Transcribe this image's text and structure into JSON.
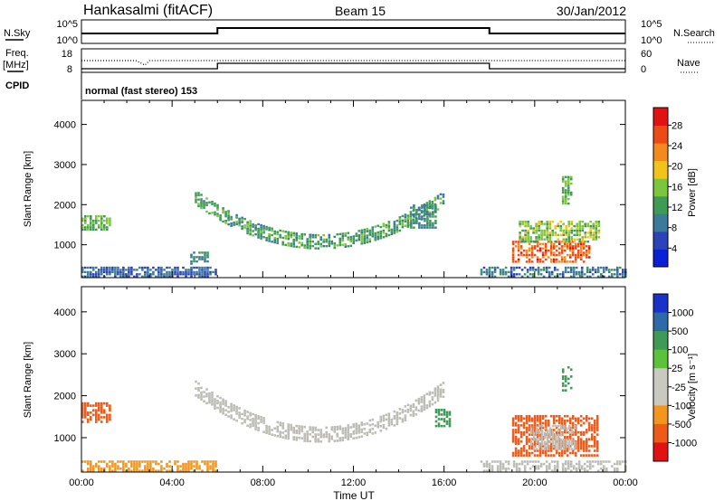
{
  "header": {
    "station": "Hankasalmi (fitACF)",
    "beam": "Beam 15",
    "date": "30/Jan/2012"
  },
  "params": {
    "nsky_label": "N.Sky",
    "nsearch_label": "N.Search",
    "freq_label": "Freq.",
    "freq_unit": "[MHz]",
    "nave_label": "Nave",
    "cpid_label": "CPID",
    "cpid_text": "normal (fast stereo) 153",
    "nsky_ticks": [
      "10^5",
      "10^0"
    ],
    "nsearch_ticks": [
      "10^5",
      "10^0"
    ],
    "freq_ticks": [
      "18",
      "8"
    ],
    "nave_ticks": [
      "60",
      "0"
    ]
  },
  "colors": {
    "power_scale": [
      "#0a1fd6",
      "#2a44b8",
      "#3b7a98",
      "#3f9a56",
      "#7cc63c",
      "#f2c41a",
      "#f28a1e",
      "#ee4a16",
      "#e01212"
    ],
    "velocity_scale": [
      "#e01212",
      "#ee5a18",
      "#f2961e",
      "#c9c9c2",
      "#c9c9c2",
      "#5cc23c",
      "#3f9a56",
      "#2f6aa8",
      "#1b32c8"
    ],
    "ground_scatter": "#bdbdb6"
  },
  "chart_data": [
    {
      "type": "heatmap",
      "name": "power-panel",
      "ylabel": "Slant Range [km]",
      "xlabel": "",
      "xlim": [
        0,
        24
      ],
      "ylim": [
        180,
        4600
      ],
      "y_ticks": [
        1000,
        2000,
        3000,
        4000
      ],
      "x_ticks": [
        "00:00",
        "04:00",
        "08:00",
        "12:00",
        "16:00",
        "20:00",
        "00:00"
      ],
      "colorbar": {
        "label": "Power [dB]",
        "ticks": [
          "4",
          "8",
          "12",
          "16",
          "20",
          "24",
          "28"
        ],
        "range": [
          0,
          32
        ]
      },
      "regions": [
        {
          "t": [
            0.0,
            1.3
          ],
          "r": [
            1350,
            1700
          ],
          "level": 14
        },
        {
          "t": [
            4.8,
            5.6
          ],
          "r": [
            500,
            800
          ],
          "level": 10
        },
        {
          "t": [
            5.0,
            16.0
          ],
          "arc": true,
          "r_top": 2100,
          "r_bottom": 1000,
          "level": 12
        },
        {
          "t": [
            14.5,
            15.6
          ],
          "r": [
            1400,
            2000
          ],
          "level": 10
        },
        {
          "t": [
            19.0,
            22.4
          ],
          "r": [
            550,
            1100
          ],
          "level": 27
        },
        {
          "t": [
            19.3,
            22.8
          ],
          "r": [
            1050,
            1550
          ],
          "level": 16
        },
        {
          "t": [
            21.2,
            21.6
          ],
          "r": [
            2000,
            2700
          ],
          "level": 14
        },
        {
          "t": [
            0.0,
            6.0
          ],
          "r": [
            180,
            420
          ],
          "level": 6
        },
        {
          "t": [
            17.6,
            24.0
          ],
          "r": [
            180,
            450
          ],
          "level": 8
        }
      ]
    },
    {
      "type": "heatmap",
      "name": "velocity-panel",
      "ylabel": "Slant Range [km]",
      "xlabel": "Time UT",
      "xlim": [
        0,
        24
      ],
      "ylim": [
        180,
        4600
      ],
      "y_ticks": [
        1000,
        2000,
        3000,
        4000
      ],
      "x_ticks": [
        "00:00",
        "04:00",
        "08:00",
        "12:00",
        "16:00",
        "20:00",
        "00:00"
      ],
      "colorbar": {
        "label": "Velocity [m s⁻¹]",
        "ticks": [
          "1000",
          "500",
          "100",
          "25",
          "-25",
          "-100",
          "-500",
          "-1000"
        ],
        "range": [
          -1000,
          1000
        ]
      },
      "regions": [
        {
          "t": [
            0.0,
            1.3
          ],
          "r": [
            1350,
            1800
          ],
          "level": -100
        },
        {
          "t": [
            5.0,
            16.0
          ],
          "arc": true,
          "r_top": 2100,
          "r_bottom": 1000,
          "level": 0
        },
        {
          "t": [
            15.6,
            16.3
          ],
          "r": [
            1250,
            1650
          ],
          "level": 100
        },
        {
          "t": [
            19.0,
            22.8
          ],
          "r": [
            550,
            1500
          ],
          "level": -100
        },
        {
          "t": [
            19.8,
            21.8
          ],
          "r": [
            700,
            1300
          ],
          "level": 0
        },
        {
          "t": [
            21.2,
            21.6
          ],
          "r": [
            2100,
            2700
          ],
          "level": 100
        },
        {
          "t": [
            0.0,
            6.0
          ],
          "r": [
            180,
            420
          ],
          "level": -25
        },
        {
          "t": [
            17.6,
            24.0
          ],
          "r": [
            180,
            450
          ],
          "level": 0
        }
      ]
    }
  ]
}
